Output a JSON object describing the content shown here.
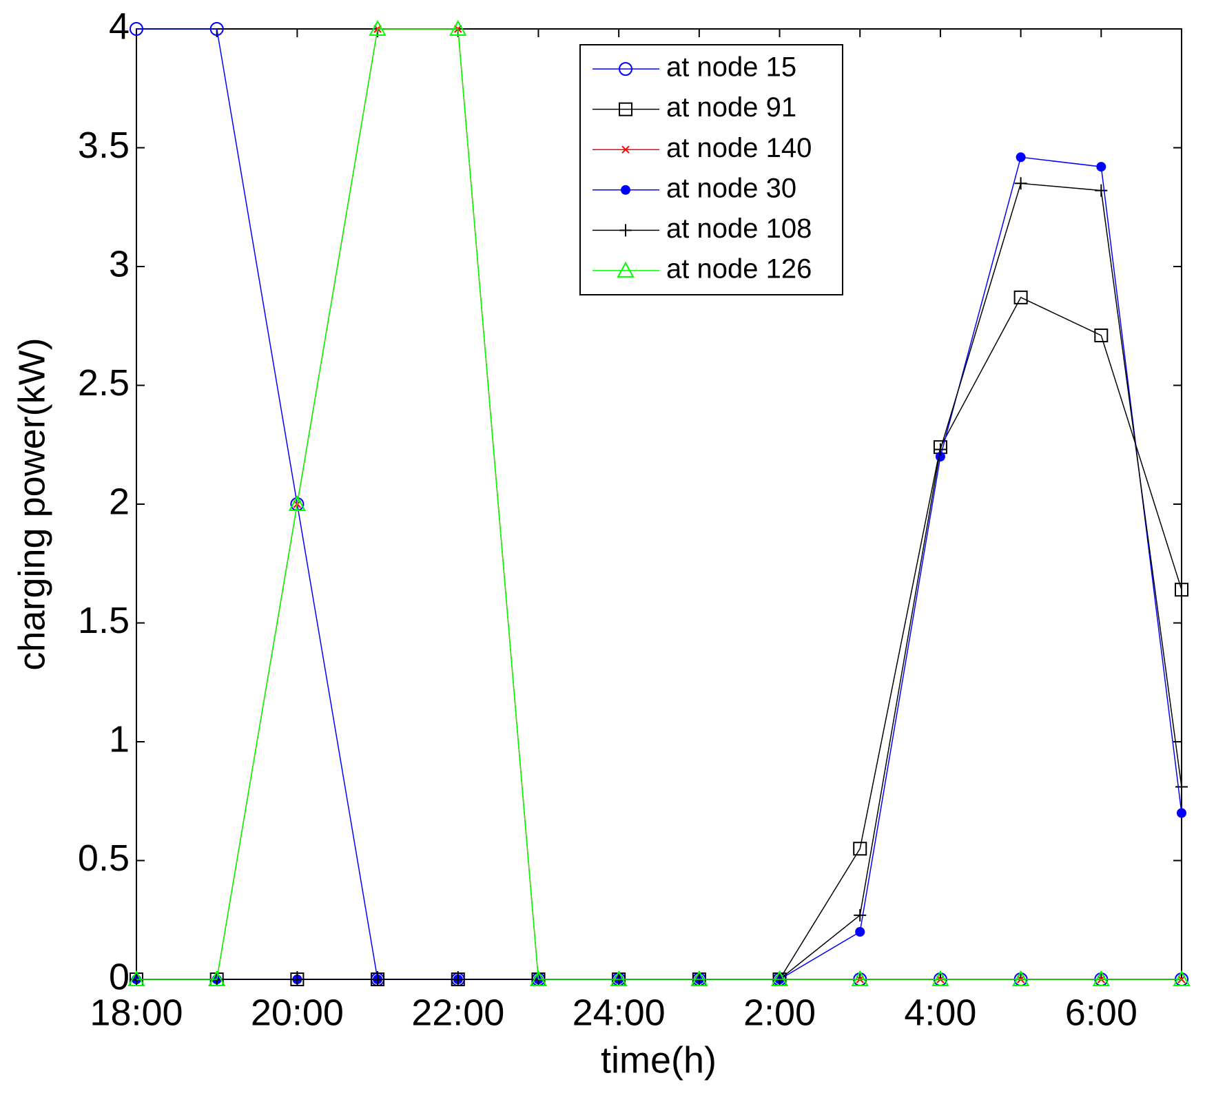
{
  "chart_data": {
    "type": "line",
    "x_label": "time(h)",
    "y_label": "charging power(kW)",
    "categories": [
      "18:00",
      null,
      "20:00",
      null,
      "22:00",
      null,
      "24:00",
      null,
      "2:00",
      null,
      "4:00",
      null,
      "6:00",
      null
    ],
    "ylim": [
      0,
      4
    ],
    "yticks": [
      0,
      0.5,
      1,
      1.5,
      2,
      2.5,
      3,
      3.5,
      4
    ],
    "legend": "top",
    "series": [
      {
        "name": "at node 15",
        "color": "#0000ff",
        "marker": "circle",
        "values": [
          4,
          4,
          2,
          0,
          0,
          0,
          0,
          0,
          0,
          0,
          0,
          0,
          0,
          0
        ]
      },
      {
        "name": "at node 91",
        "color": "#000000",
        "marker": "square",
        "values": [
          0,
          0,
          0,
          0,
          0,
          0,
          0,
          0,
          0,
          0.55,
          2.24,
          2.87,
          2.71,
          1.64
        ]
      },
      {
        "name": "at node 140",
        "color": "#ff0000",
        "marker": "x",
        "values": [
          0,
          0,
          2,
          4,
          4,
          0,
          0,
          0,
          0,
          0,
          0,
          0,
          0,
          0
        ]
      },
      {
        "name": "at node 30",
        "color": "#0000ff",
        "marker": "dot",
        "values": [
          0,
          0,
          0,
          0,
          0,
          0,
          0,
          0,
          0,
          0.2,
          2.2,
          3.46,
          3.42,
          0.7
        ]
      },
      {
        "name": "at node 108",
        "color": "#000000",
        "marker": "plus",
        "values": [
          0,
          0,
          0,
          0,
          0,
          0,
          0,
          0,
          0,
          0.27,
          2.23,
          3.35,
          3.32,
          0.81
        ]
      },
      {
        "name": "at node 126",
        "color": "#00ff00",
        "marker": "triangle",
        "values": [
          0,
          0,
          2,
          4,
          4,
          0,
          0,
          0,
          0,
          0,
          0,
          0,
          0,
          0
        ]
      }
    ]
  }
}
